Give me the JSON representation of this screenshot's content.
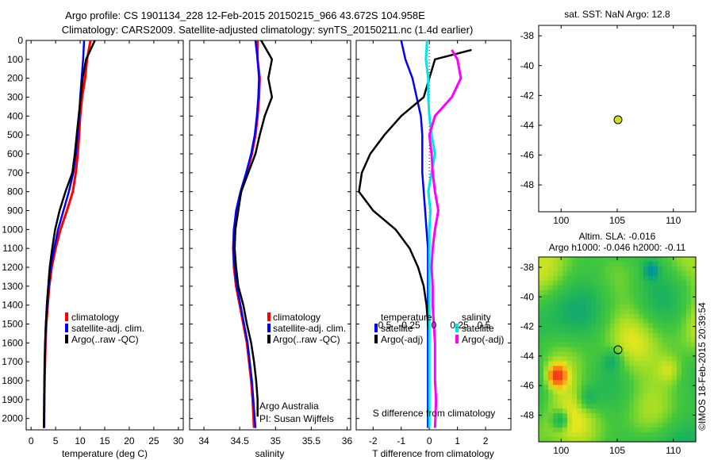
{
  "title_line1": "Argo profile: CS 1901134_228 12-Feb-2015 20150215_966 43.672S 104.958E",
  "title_line2": "Climatology: CARS2009. Satellite-adjusted climatology: synTS_20150211.nc (1.4d earlier)",
  "depth_ticks": [
    "0",
    "100",
    "200",
    "300",
    "400",
    "500",
    "600",
    "700",
    "800",
    "900",
    "1000",
    "1100",
    "1200",
    "1300",
    "1400",
    "1500",
    "1600",
    "1700",
    "1800",
    "1900",
    "2000"
  ],
  "colors": {
    "climatology": "#ff0000",
    "satellite": "#0000ff",
    "argo": "#000000",
    "sal_satellite": "#00e5e5",
    "sal_argo": "#ff00ff"
  },
  "panel1": {
    "xlabel": "temperature (deg C)",
    "xticks": [
      "0",
      "5",
      "10",
      "15",
      "20",
      "25",
      "30"
    ],
    "legend": [
      "climatology",
      "satellite-adj. clim.",
      "Argo(..raw -QC)"
    ]
  },
  "panel2": {
    "xlabel": "salinity",
    "xticks": [
      "34",
      "34.5",
      "35",
      "35.5",
      "36"
    ],
    "legend": [
      "climatology",
      "satellite-adj. clim.",
      "Argo(..raw -QC)"
    ],
    "note1": "Argo Australia",
    "note2": "PI: Susan Wijffels"
  },
  "panel3": {
    "xlabel": "T difference from climatology",
    "xticks": [
      "-2",
      "-1",
      "0",
      "1",
      "2"
    ],
    "s_label": "S difference from climatology",
    "s_ticks": [
      "-0.5",
      "-0.25",
      "0",
      "0.25",
      "0.5"
    ],
    "legend_temp_title": "temperature",
    "legend_sal_title": "salinity",
    "legend_temp": [
      "satellite",
      "Argo(-adj)"
    ],
    "legend_sal": [
      "satellite",
      "Argo(-adj)"
    ]
  },
  "map1": {
    "title": "sat. SST: NaN Argo: 12.8",
    "yticks": [
      "-38",
      "-40",
      "-42",
      "-44",
      "-46",
      "-48"
    ],
    "xticks": [
      "100",
      "105",
      "110"
    ],
    "dot_color": "#ccdd22"
  },
  "map2": {
    "title1": "Altim. SLA: -0.016",
    "title2": "Argo h1000: -0.046 h2000: -0.11",
    "yticks": [
      "-38",
      "-40",
      "-42",
      "-44",
      "-46",
      "-48"
    ],
    "xticks": [
      "100",
      "105",
      "110"
    ]
  },
  "side_text": "©IMOS 18-Feb-2015 20:39:54",
  "chart_data": [
    {
      "type": "line",
      "xlabel": "temperature (deg C)",
      "ylabel": "",
      "xlim": [
        -1,
        31
      ],
      "ylim": [
        2060,
        0
      ],
      "series": [
        {
          "name": "climatology",
          "x": [
            12.1,
            11.4,
            11.0,
            10.4,
            10.0,
            9.8,
            9.5,
            9.1,
            8.5,
            7.3,
            6.0,
            5.0,
            4.2,
            3.7,
            3.4,
            3.1,
            2.95,
            2.85,
            2.75,
            2.7,
            2.65
          ],
          "y": [
            0,
            100,
            200,
            300,
            400,
            500,
            600,
            700,
            800,
            900,
            1000,
            1100,
            1200,
            1300,
            1400,
            1500,
            1600,
            1700,
            1800,
            1900,
            2050
          ]
        },
        {
          "name": "satellite-adj. clim.",
          "x": [
            10.8,
            10.6,
            10.3,
            10.0,
            9.8,
            9.5,
            9.1,
            8.6,
            7.7,
            6.6,
            5.5,
            4.7,
            4.0,
            3.6,
            3.3,
            3.0,
            2.9,
            2.8,
            2.75,
            2.7,
            2.65
          ],
          "y": [
            0,
            100,
            200,
            300,
            400,
            500,
            600,
            700,
            800,
            900,
            1000,
            1100,
            1200,
            1300,
            1400,
            1500,
            1600,
            1700,
            1800,
            1900,
            2050
          ]
        },
        {
          "name": "Argo(..raw -QC)",
          "x": [
            13.0,
            11.2,
            10.5,
            10.1,
            9.7,
            9.3,
            8.9,
            8.4,
            7.0,
            5.8,
            4.9,
            4.3,
            3.8,
            3.5,
            3.2,
            3.0,
            2.85,
            2.75,
            2.7,
            2.65,
            2.6
          ],
          "y": [
            0,
            100,
            200,
            300,
            400,
            500,
            600,
            700,
            800,
            900,
            1000,
            1100,
            1200,
            1300,
            1400,
            1500,
            1600,
            1700,
            1800,
            1900,
            2050
          ]
        }
      ]
    },
    {
      "type": "line",
      "xlabel": "salinity",
      "ylabel": "",
      "xlim": [
        33.8,
        36.05
      ],
      "ylim": [
        2060,
        0
      ],
      "series": [
        {
          "name": "climatology",
          "x": [
            34.75,
            34.75,
            34.78,
            34.77,
            34.75,
            34.72,
            34.67,
            34.6,
            34.52,
            34.46,
            34.42,
            34.41,
            34.42,
            34.45,
            34.5,
            34.55,
            34.6,
            34.63,
            34.66,
            34.68,
            34.7
          ],
          "y": [
            0,
            100,
            200,
            300,
            400,
            500,
            600,
            700,
            800,
            900,
            1000,
            1100,
            1200,
            1300,
            1400,
            1500,
            1600,
            1700,
            1800,
            1900,
            2050
          ]
        },
        {
          "name": "satellite-adj. clim.",
          "x": [
            34.72,
            34.75,
            34.77,
            34.76,
            34.74,
            34.71,
            34.66,
            34.59,
            34.51,
            34.45,
            34.42,
            34.41,
            34.43,
            34.46,
            34.51,
            34.56,
            34.61,
            34.64,
            34.67,
            34.69,
            34.72
          ],
          "y": [
            0,
            100,
            200,
            300,
            400,
            500,
            600,
            700,
            800,
            900,
            1000,
            1100,
            1200,
            1300,
            1400,
            1500,
            1600,
            1700,
            1800,
            1900,
            2050
          ]
        },
        {
          "name": "Argo(..raw -QC)",
          "x": [
            34.8,
            34.95,
            34.9,
            34.95,
            34.85,
            34.78,
            34.72,
            34.62,
            34.52,
            34.48,
            34.44,
            34.43,
            34.45,
            34.48,
            34.55,
            34.6,
            34.66,
            34.7,
            34.73,
            34.75,
            34.75
          ],
          "y": [
            0,
            100,
            200,
            300,
            400,
            500,
            600,
            700,
            800,
            900,
            1000,
            1100,
            1200,
            1300,
            1400,
            1500,
            1600,
            1700,
            1800,
            1900,
            1990
          ]
        }
      ]
    },
    {
      "type": "line",
      "xlabel": "T difference from climatology",
      "ylabel": "",
      "xlim": [
        -2.6,
        2.9
      ],
      "ylim": [
        2060,
        0
      ],
      "series": [
        {
          "name": "satellite",
          "x": [
            -1.0,
            -0.85,
            -0.6,
            -0.45,
            -0.3,
            -0.25,
            -0.25,
            -0.25,
            -0.2,
            -0.15,
            -0.1,
            -0.05,
            -0.05,
            -0.05,
            -0.05,
            -0.05,
            -0.05,
            -0.05,
            -0.05,
            -0.05,
            -0.05
          ],
          "y": [
            0,
            100,
            200,
            300,
            400,
            500,
            600,
            700,
            800,
            900,
            1000,
            1100,
            1200,
            1300,
            1400,
            1500,
            1600,
            1700,
            1800,
            1900,
            2050
          ]
        },
        {
          "name": "Argo(-adj)",
          "x": [
            1.5,
            0.2,
            0.0,
            -0.2,
            -1.0,
            -1.6,
            -2.1,
            -2.4,
            -2.5,
            -2.0,
            -1.2,
            -0.7,
            -0.4,
            -0.2,
            -0.1,
            -0.05,
            0.0,
            0.0,
            0.0,
            0.0,
            0.0
          ],
          "y": [
            50,
            100,
            200,
            300,
            400,
            500,
            600,
            700,
            800,
            900,
            1000,
            1100,
            1200,
            1300,
            1400,
            1500,
            1600,
            1700,
            1800,
            1900,
            2050
          ]
        }
      ]
    },
    {
      "type": "line",
      "xlabel": "S difference from climatology",
      "ylabel": "",
      "xlim": [
        -0.65,
        0.725
      ],
      "ylim": [
        2060,
        0
      ],
      "series": [
        {
          "name": "satellite",
          "x": [
            -0.02,
            -0.03,
            -0.01,
            -0.01,
            0.0,
            0.02,
            0.05,
            0.02,
            -0.01,
            0.01,
            0.0,
            0.0,
            0.0,
            0.0,
            0.0,
            0.0,
            0.0,
            0.0,
            0.0,
            0.0,
            0.0
          ],
          "y": [
            0,
            100,
            200,
            300,
            400,
            500,
            600,
            700,
            800,
            900,
            1000,
            1100,
            1200,
            1300,
            1400,
            1500,
            1600,
            1700,
            1800,
            1900,
            2050
          ]
        },
        {
          "name": "Argo(-adj)",
          "x": [
            0.2,
            0.25,
            0.28,
            0.2,
            0.05,
            0.0,
            0.02,
            0.03,
            0.05,
            0.08,
            0.05,
            0.03,
            0.02,
            0.03,
            0.03,
            0.04,
            0.05,
            0.05,
            0.05,
            0.06,
            0.05
          ],
          "y": [
            50,
            100,
            200,
            300,
            400,
            500,
            600,
            700,
            800,
            900,
            1000,
            1100,
            1200,
            1300,
            1400,
            1500,
            1600,
            1700,
            1800,
            1900,
            2050
          ]
        }
      ]
    },
    {
      "type": "scatter",
      "title": "sat. SST: NaN Argo: 12.8",
      "xlim": [
        98,
        112
      ],
      "ylim": [
        -49.8,
        -37.3
      ],
      "points": [
        {
          "x": 104.958,
          "y": -43.672
        }
      ]
    },
    {
      "type": "heatmap",
      "title": "Altim. SLA: -0.016",
      "xlim": [
        98,
        112
      ],
      "ylim": [
        -49.8,
        -37.3
      ],
      "points": [
        {
          "x": 104.958,
          "y": -43.672
        }
      ]
    }
  ]
}
